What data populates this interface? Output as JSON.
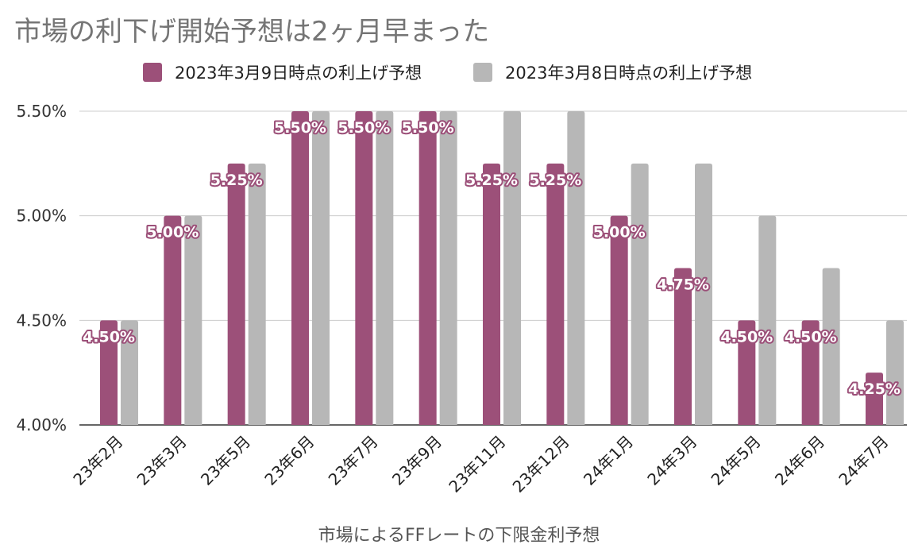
{
  "chart_data": {
    "type": "bar",
    "title": "市場の利下げ開始予想は2ヶ月早まった",
    "xlabel": "市場によるFFレートの下限金利予想",
    "ylabel": "",
    "categories": [
      "23年2月",
      "23年3月",
      "23年5月",
      "23年6月",
      "23年7月",
      "23年9月",
      "23年11月",
      "23年12月",
      "24年1月",
      "24年3月",
      "24年5月",
      "24年6月",
      "24年7月"
    ],
    "series": [
      {
        "name": "2023年3月9日時点の利上げ予想",
        "color": "#9c5079",
        "values": [
          4.5,
          5.0,
          5.25,
          5.5,
          5.5,
          5.5,
          5.25,
          5.25,
          5.0,
          4.75,
          4.5,
          4.5,
          4.25
        ],
        "data_labels": [
          "4.50%",
          "5.00%",
          "5.25%",
          "5.50%",
          "5.50%",
          "5.50%",
          "5.25%",
          "5.25%",
          "5.00%",
          "4.75%",
          "4.50%",
          "4.50%",
          "4.25%"
        ]
      },
      {
        "name": "2023年3月8日時点の利上げ予想",
        "color": "#b7b7b7",
        "values": [
          4.5,
          5.0,
          5.25,
          5.5,
          5.5,
          5.5,
          5.5,
          5.5,
          5.25,
          5.25,
          5.0,
          4.75,
          4.5
        ]
      }
    ],
    "ylim": [
      4.0,
      5.5
    ],
    "yticks": [
      4.0,
      4.5,
      5.0,
      5.5
    ],
    "ytick_labels": [
      "4.00%",
      "4.50%",
      "5.00%",
      "5.50%"
    ],
    "grid": true,
    "legend_position": "top"
  }
}
